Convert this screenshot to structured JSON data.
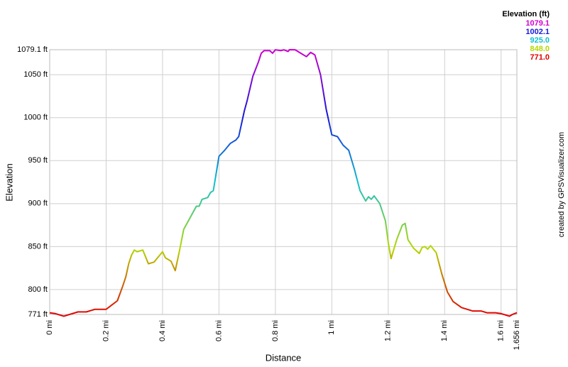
{
  "chart_data": {
    "type": "line",
    "xlabel": "Distance",
    "ylabel": "Elevation",
    "credit": "created by GPSVisualizer.com",
    "legend": {
      "title": "Elevation (ft)",
      "items": [
        {
          "value": 1079.1,
          "label": "1079.1",
          "color": "#d000d0"
        },
        {
          "value": 1002.1,
          "label": "1002.1",
          "color": "#1818d8"
        },
        {
          "value": 925,
          "label": "925.0",
          "color": "#10c0d0"
        },
        {
          "value": 848,
          "label": "848.0",
          "color": "#b4d800"
        },
        {
          "value": 771,
          "label": "771.0",
          "color": "#e00000"
        }
      ]
    },
    "grid": true,
    "xlim": [
      0,
      1.656
    ],
    "ylim": [
      771,
      1079.1
    ],
    "xticks": [
      {
        "value": 0,
        "label": "0 mi"
      },
      {
        "value": 0.2,
        "label": "0.2 mi"
      },
      {
        "value": 0.4,
        "label": "0.4 mi"
      },
      {
        "value": 0.6,
        "label": "0.6 mi"
      },
      {
        "value": 0.8,
        "label": "0.8 mi"
      },
      {
        "value": 1,
        "label": "1 mi"
      },
      {
        "value": 1.2,
        "label": "1.2 mi"
      },
      {
        "value": 1.4,
        "label": "1.4 mi"
      },
      {
        "value": 1.6,
        "label": "1.6 mi"
      },
      {
        "value": 1.656,
        "label": "1.656 mi"
      }
    ],
    "yticks": [
      {
        "value": 771,
        "label": "771 ft"
      },
      {
        "value": 800,
        "label": "800 ft"
      },
      {
        "value": 850,
        "label": "850 ft"
      },
      {
        "value": 900,
        "label": "900 ft"
      },
      {
        "value": 950,
        "label": "950 ft"
      },
      {
        "value": 1000,
        "label": "1000 ft"
      },
      {
        "value": 1050,
        "label": "1050 ft"
      },
      {
        "value": 1079.1,
        "label": "1079.1 ft"
      }
    ],
    "x": [
      0,
      0.02,
      0.05,
      0.08,
      0.1,
      0.13,
      0.16,
      0.19,
      0.2,
      0.22,
      0.24,
      0.26,
      0.27,
      0.28,
      0.29,
      0.3,
      0.31,
      0.33,
      0.35,
      0.37,
      0.4,
      0.41,
      0.43,
      0.445,
      0.46,
      0.475,
      0.5,
      0.52,
      0.53,
      0.54,
      0.56,
      0.57,
      0.58,
      0.6,
      0.62,
      0.64,
      0.66,
      0.67,
      0.69,
      0.7,
      0.72,
      0.74,
      0.75,
      0.76,
      0.78,
      0.79,
      0.8,
      0.82,
      0.83,
      0.845,
      0.85,
      0.87,
      0.89,
      0.91,
      0.925,
      0.94,
      0.96,
      0.98,
      1.0,
      1.02,
      1.04,
      1.06,
      1.08,
      1.1,
      1.12,
      1.13,
      1.14,
      1.15,
      1.17,
      1.19,
      1.2,
      1.21,
      1.23,
      1.25,
      1.26,
      1.27,
      1.29,
      1.31,
      1.32,
      1.33,
      1.34,
      1.35,
      1.37,
      1.39,
      1.41,
      1.43,
      1.46,
      1.5,
      1.53,
      1.55,
      1.58,
      1.6,
      1.63,
      1.64,
      1.656
    ],
    "values": [
      773,
      772,
      769,
      772,
      774,
      774,
      777,
      777,
      777,
      782,
      787,
      805,
      815,
      830,
      840,
      846,
      844,
      846,
      830,
      832,
      844,
      837,
      833,
      822,
      845,
      870,
      885,
      897,
      897,
      905,
      907,
      913,
      915,
      955,
      962,
      970,
      974,
      978,
      1008,
      1020,
      1048,
      1065,
      1075,
      1078,
      1078,
      1075,
      1079,
      1078,
      1079,
      1077,
      1079.1,
      1079,
      1075,
      1071,
      1076,
      1073,
      1050,
      1010,
      980,
      978,
      968,
      962,
      940,
      915,
      903,
      908,
      905,
      909,
      900,
      880,
      855,
      836,
      858,
      875,
      877,
      858,
      848,
      842,
      849,
      850,
      847,
      851,
      843,
      818,
      797,
      786,
      779,
      775,
      775,
      773,
      773,
      772,
      769,
      771,
      773
    ]
  }
}
